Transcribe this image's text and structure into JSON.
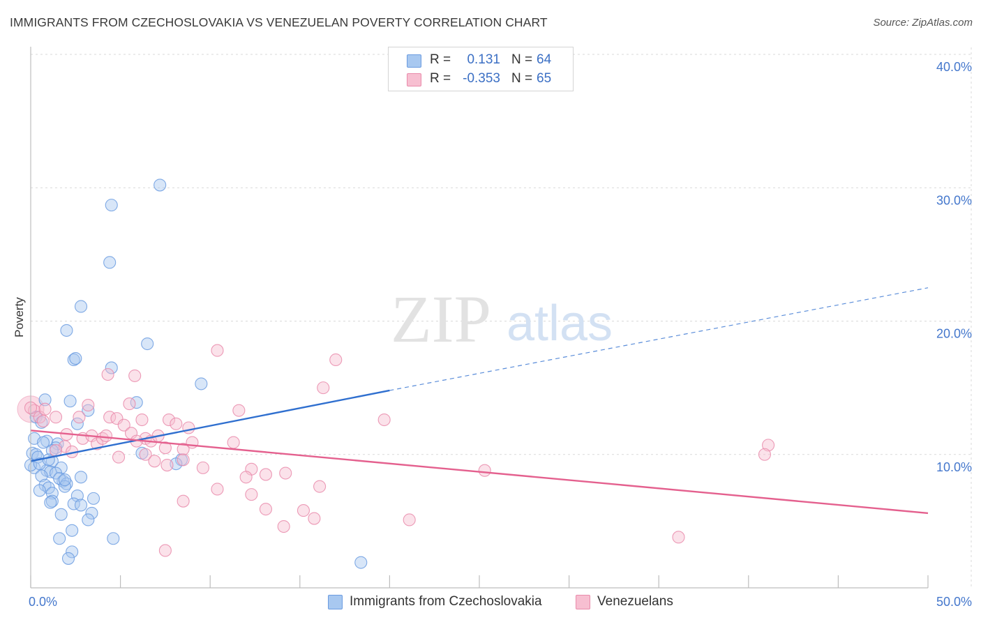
{
  "title": "IMMIGRANTS FROM CZECHOSLOVAKIA VS VENEZUELAN POVERTY CORRELATION CHART",
  "source": "Source: ZipAtlas.com",
  "watermark": {
    "zip": "ZIP",
    "atlas": "atlas"
  },
  "colors": {
    "blue_fill": "#a8c8f0",
    "blue_stroke": "#6a9be0",
    "blue_line": "#2f6fcf",
    "pink_fill": "#f7bfd1",
    "pink_stroke": "#e98aaa",
    "pink_line": "#e4608e",
    "axis_label": "#4477cc",
    "grid": "#d9d9d9"
  },
  "legend": {
    "rows": [
      {
        "r_label": "R =",
        "r_value": "0.131",
        "n_label": "N =",
        "n_value": "64",
        "color": "#a8c8f0",
        "border": "#6a9be0"
      },
      {
        "r_label": "R =",
        "r_value": "-0.353",
        "n_label": "N =",
        "n_value": "65",
        "color": "#f7bfd1",
        "border": "#e98aaa"
      }
    ]
  },
  "bottom_legend": {
    "series1": "Immigrants from Czechoslovakia",
    "series2": "Venezuelans"
  },
  "chart_data": {
    "type": "scatter",
    "title": "IMMIGRANTS FROM CZECHOSLOVAKIA VS VENEZUELAN POVERTY CORRELATION CHART",
    "xlabel": "",
    "ylabel": "Poverty",
    "xlim": [
      0,
      50
    ],
    "ylim": [
      0,
      40
    ],
    "x_tick_labels": [
      "0.0%",
      "50.0%"
    ],
    "y_ticks": [
      10,
      20,
      30,
      40
    ],
    "y_tick_labels": [
      "10.0%",
      "20.0%",
      "30.0%",
      "40.0%"
    ],
    "grid": true,
    "series": [
      {
        "name": "Immigrants from Czechoslovakia",
        "r": 0.131,
        "n": 64,
        "trend": {
          "x0": 0,
          "y0": 9.5,
          "x1": 20,
          "y1": 14.8,
          "dash_to_x": 50,
          "dash_to_y": 22.5
        },
        "points": [
          [
            7.2,
            30.2
          ],
          [
            4.5,
            28.7
          ],
          [
            4.4,
            24.4
          ],
          [
            2.8,
            21.1
          ],
          [
            2.0,
            19.3
          ],
          [
            6.5,
            18.3
          ],
          [
            2.4,
            17.1
          ],
          [
            2.5,
            17.2
          ],
          [
            4.5,
            16.5
          ],
          [
            9.5,
            15.3
          ],
          [
            0.8,
            14.1
          ],
          [
            2.2,
            14.0
          ],
          [
            5.9,
            13.9
          ],
          [
            3.2,
            13.3
          ],
          [
            0.3,
            12.8
          ],
          [
            0.6,
            12.4
          ],
          [
            2.6,
            12.3
          ],
          [
            0.2,
            11.2
          ],
          [
            0.9,
            11.0
          ],
          [
            1.5,
            10.8
          ],
          [
            1.4,
            10.5
          ],
          [
            1.2,
            10.3
          ],
          [
            0.1,
            10.1
          ],
          [
            0.3,
            10.0
          ],
          [
            0.4,
            9.8
          ],
          [
            1.2,
            9.5
          ],
          [
            0.2,
            9.0
          ],
          [
            1.7,
            9.0
          ],
          [
            0.9,
            8.8
          ],
          [
            1.1,
            8.7
          ],
          [
            1.4,
            8.6
          ],
          [
            0.6,
            8.4
          ],
          [
            2.8,
            8.3
          ],
          [
            1.8,
            8.0
          ],
          [
            1.6,
            8.2
          ],
          [
            2.0,
            7.8
          ],
          [
            0.8,
            7.7
          ],
          [
            1.9,
            7.6
          ],
          [
            1.0,
            7.5
          ],
          [
            0.5,
            7.3
          ],
          [
            1.2,
            7.1
          ],
          [
            2.6,
            6.9
          ],
          [
            3.5,
            6.7
          ],
          [
            1.2,
            6.5
          ],
          [
            2.4,
            6.3
          ],
          [
            2.8,
            6.2
          ],
          [
            1.7,
            5.5
          ],
          [
            3.4,
            5.6
          ],
          [
            3.2,
            5.1
          ],
          [
            2.3,
            4.3
          ],
          [
            1.6,
            3.7
          ],
          [
            4.6,
            3.7
          ],
          [
            2.3,
            2.7
          ],
          [
            2.1,
            2.2
          ],
          [
            18.4,
            1.9
          ],
          [
            8.4,
            9.6
          ],
          [
            8.1,
            9.3
          ],
          [
            6.2,
            10.1
          ],
          [
            0.0,
            9.2
          ],
          [
            0.5,
            9.3
          ],
          [
            1.9,
            8.1
          ],
          [
            1.1,
            6.4
          ],
          [
            0.7,
            10.9
          ],
          [
            1.0,
            9.6
          ]
        ]
      },
      {
        "name": "Venezuelans",
        "r": -0.353,
        "n": 65,
        "trend": {
          "x0": 0,
          "y0": 11.8,
          "x1": 50,
          "y1": 5.6
        },
        "points": [
          [
            0.2,
            13.3
          ],
          [
            0.5,
            12.8
          ],
          [
            0.8,
            13.4
          ],
          [
            0.7,
            12.5
          ],
          [
            1.4,
            12.8
          ],
          [
            2.7,
            12.8
          ],
          [
            3.2,
            13.7
          ],
          [
            4.4,
            12.8
          ],
          [
            4.8,
            12.7
          ],
          [
            5.5,
            13.8
          ],
          [
            6.2,
            12.6
          ],
          [
            6.4,
            11.2
          ],
          [
            7.7,
            12.6
          ],
          [
            8.1,
            12.3
          ],
          [
            8.8,
            12.0
          ],
          [
            4.3,
            16.0
          ],
          [
            5.8,
            15.9
          ],
          [
            10.4,
            17.8
          ],
          [
            11.6,
            13.3
          ],
          [
            16.3,
            15.0
          ],
          [
            17.0,
            17.1
          ],
          [
            19.7,
            12.6
          ],
          [
            2.0,
            11.5
          ],
          [
            1.9,
            10.6
          ],
          [
            2.9,
            11.2
          ],
          [
            3.4,
            11.4
          ],
          [
            3.7,
            10.8
          ],
          [
            4.0,
            11.2
          ],
          [
            4.2,
            11.4
          ],
          [
            5.2,
            12.2
          ],
          [
            5.6,
            11.6
          ],
          [
            5.9,
            11.0
          ],
          [
            6.7,
            11.0
          ],
          [
            7.1,
            11.4
          ],
          [
            7.5,
            10.5
          ],
          [
            8.5,
            10.4
          ],
          [
            9.0,
            10.9
          ],
          [
            11.3,
            10.9
          ],
          [
            1.4,
            10.3
          ],
          [
            2.3,
            10.2
          ],
          [
            6.4,
            10.0
          ],
          [
            6.9,
            9.5
          ],
          [
            7.6,
            9.2
          ],
          [
            8.5,
            9.6
          ],
          [
            9.6,
            9.0
          ],
          [
            12.3,
            8.9
          ],
          [
            13.1,
            8.5
          ],
          [
            14.2,
            8.6
          ],
          [
            4.9,
            9.8
          ],
          [
            16.1,
            7.6
          ],
          [
            10.4,
            7.4
          ],
          [
            12.3,
            7.0
          ],
          [
            8.5,
            6.5
          ],
          [
            13.1,
            5.9
          ],
          [
            15.2,
            5.8
          ],
          [
            15.8,
            5.2
          ],
          [
            21.1,
            5.1
          ],
          [
            14.1,
            4.6
          ],
          [
            7.5,
            2.8
          ],
          [
            25.3,
            8.8
          ],
          [
            41.1,
            10.7
          ],
          [
            40.9,
            10.0
          ],
          [
            36.1,
            3.8
          ],
          [
            0.0,
            13.5
          ],
          [
            12.0,
            8.3
          ]
        ]
      }
    ]
  }
}
